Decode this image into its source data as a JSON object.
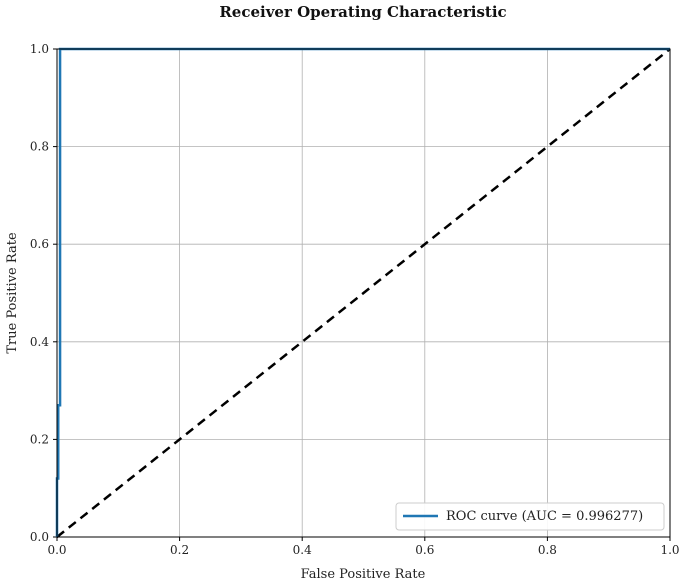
{
  "chart_data": {
    "type": "line",
    "title": "Receiver Operating Characteristic",
    "xlabel": "False Positive Rate",
    "ylabel": "True Positive Rate",
    "xlim": [
      0,
      1
    ],
    "ylim": [
      0,
      1
    ],
    "grid": true,
    "legend_position": "bottom-right",
    "x_ticks": [
      "0.0",
      "0.2",
      "0.4",
      "0.6",
      "0.8",
      "1.0"
    ],
    "y_ticks": [
      "0.0",
      "0.2",
      "0.4",
      "0.6",
      "0.8",
      "1.0"
    ],
    "series": [
      {
        "name": "ROC curve (AUC = 0.996277)",
        "color": "#1f77b4",
        "style": "solid",
        "x": [
          0.0,
          0.0,
          0.002,
          0.002,
          0.005,
          0.005,
          1.0
        ],
        "y": [
          0.0,
          0.12,
          0.12,
          0.27,
          0.27,
          1.0,
          1.0
        ]
      },
      {
        "color": "#000000",
        "style": "dashed",
        "x": [
          0.0,
          1.0
        ],
        "y": [
          0.0,
          1.0
        ]
      }
    ]
  }
}
